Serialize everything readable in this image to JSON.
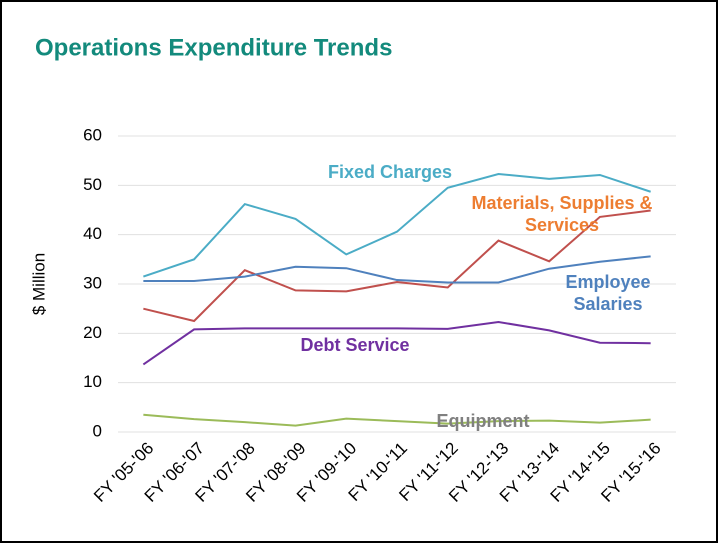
{
  "chart_data": {
    "type": "line",
    "title": "Operations Expenditure Trends",
    "ylabel": "$ Million",
    "categories": [
      "FY '05-'06",
      "FY '06-'07",
      "FY '07-'08",
      "FY '08-'09",
      "FY '09-'10",
      "FY '10-'11",
      "FY '11-'12",
      "FY '12-'13",
      "FY '13-'14",
      "FY '14-'15",
      "FY '15-'16"
    ],
    "ylim": [
      0,
      60
    ],
    "yticks": [
      0,
      10,
      20,
      30,
      40,
      50,
      60
    ],
    "grid": true,
    "series": [
      {
        "name": "Fixed Charges",
        "color": "#4bacc6",
        "label_color": "#4bacc6",
        "values": [
          31.5,
          35,
          46.2,
          43.2,
          36,
          40.6,
          49.5,
          52.3,
          51.3,
          52.1,
          48.7
        ]
      },
      {
        "name": "Materials, Supplies & Services",
        "color": "#c0504d",
        "label_color": "#ed7d31",
        "values": [
          25,
          22.5,
          32.8,
          28.7,
          28.5,
          30.4,
          29.3,
          38.8,
          34.6,
          43.6,
          44.9
        ]
      },
      {
        "name": "Employee Salaries",
        "color": "#4f81bd",
        "label_color": "#4f81bd",
        "values": [
          30.6,
          30.6,
          31.5,
          33.5,
          33.2,
          30.8,
          30.3,
          30.3,
          33.1,
          34.5,
          35.6
        ]
      },
      {
        "name": "Debt Service",
        "color": "#7030a0",
        "label_color": "#7030a0",
        "values": [
          13.7,
          20.8,
          21,
          21,
          21,
          21,
          20.9,
          22.3,
          20.6,
          18.1,
          18
        ]
      },
      {
        "name": "Equipment",
        "color": "#9bbb59",
        "label_color": "#808080",
        "values": [
          3.5,
          2.6,
          2.0,
          1.3,
          2.7,
          2.2,
          1.7,
          2.2,
          2.3,
          1.9,
          2.5
        ]
      }
    ]
  }
}
